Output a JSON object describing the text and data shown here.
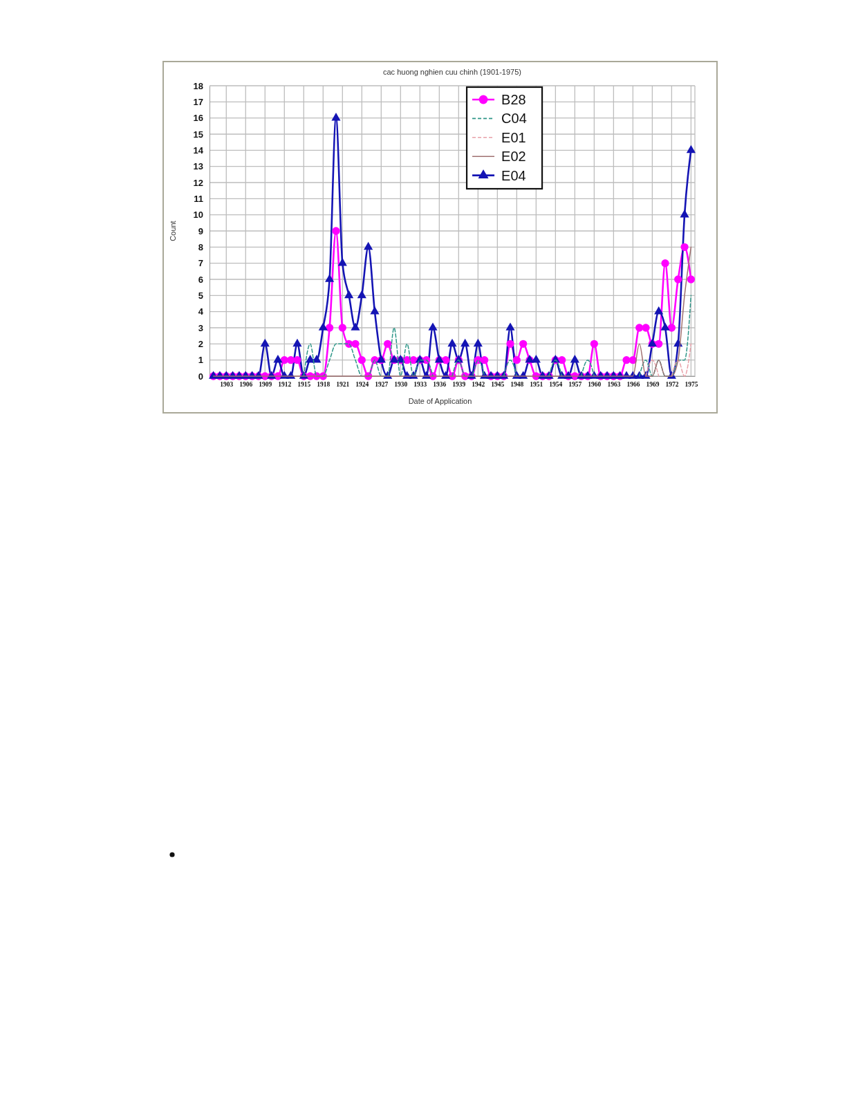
{
  "chart_data": {
    "type": "line",
    "title": "cac huong nghien cuu chinh (1901-1975)",
    "xlabel": "Date of Application",
    "ylabel": "Count",
    "x": [
      1901,
      1902,
      1903,
      1904,
      1905,
      1906,
      1907,
      1908,
      1909,
      1910,
      1911,
      1912,
      1913,
      1914,
      1915,
      1916,
      1917,
      1918,
      1919,
      1920,
      1921,
      1922,
      1923,
      1924,
      1925,
      1926,
      1927,
      1928,
      1929,
      1930,
      1931,
      1932,
      1933,
      1934,
      1935,
      1936,
      1937,
      1938,
      1939,
      1940,
      1941,
      1942,
      1943,
      1944,
      1945,
      1946,
      1947,
      1948,
      1949,
      1950,
      1951,
      1952,
      1953,
      1954,
      1955,
      1956,
      1957,
      1958,
      1959,
      1960,
      1961,
      1962,
      1963,
      1964,
      1965,
      1966,
      1967,
      1968,
      1969,
      1970,
      1971,
      1972,
      1973,
      1974,
      1975
    ],
    "xlim": [
      1900.4,
      1975.6
    ],
    "xticks": [
      1903,
      1906,
      1909,
      1912,
      1915,
      1918,
      1921,
      1924,
      1927,
      1930,
      1933,
      1936,
      1939,
      1942,
      1945,
      1948,
      1951,
      1954,
      1957,
      1960,
      1963,
      1966,
      1969,
      1972,
      1975
    ],
    "ylim": [
      0,
      18
    ],
    "yticks": [
      0,
      1,
      2,
      3,
      4,
      5,
      6,
      7,
      8,
      9,
      10,
      11,
      12,
      13,
      14,
      15,
      16,
      17,
      18
    ],
    "grid": true,
    "legend": "top",
    "series": [
      {
        "name": "B28",
        "color": "#ff00ff",
        "marker": "circle",
        "line_style": "solid",
        "values": [
          0,
          0,
          0,
          0,
          0,
          0,
          0,
          0,
          0,
          0,
          0,
          1,
          1,
          1,
          0,
          0,
          0,
          0,
          3,
          9,
          3,
          2,
          2,
          1,
          0,
          1,
          1,
          2,
          1,
          1,
          1,
          1,
          1,
          1,
          0,
          1,
          1,
          0,
          1,
          0,
          0,
          1,
          1,
          0,
          0,
          0,
          2,
          1,
          2,
          1,
          0,
          0,
          0,
          1,
          1,
          0,
          0,
          0,
          0,
          2,
          0,
          0,
          0,
          0,
          1,
          1,
          3,
          3,
          2,
          2,
          7,
          3,
          6,
          8,
          6
        ]
      },
      {
        "name": "C04",
        "color": "#2e9688",
        "marker": "none",
        "line_style": "dashed",
        "values": [
          null,
          null,
          null,
          null,
          null,
          null,
          null,
          null,
          null,
          null,
          null,
          null,
          null,
          null,
          0,
          2,
          0,
          0,
          1,
          2,
          2,
          2,
          1,
          0,
          0,
          1,
          0,
          0,
          3,
          0,
          2,
          0,
          1,
          1,
          0,
          null,
          null,
          0,
          1,
          0,
          0,
          1,
          0,
          null,
          null,
          0,
          1,
          0,
          null,
          null,
          null,
          null,
          0,
          1,
          0,
          null,
          null,
          0,
          1,
          0,
          null,
          null,
          null,
          null,
          null,
          null,
          0,
          1,
          0,
          1,
          0,
          0,
          1,
          1,
          5
        ]
      },
      {
        "name": "E01",
        "color": "#e8a0a8",
        "marker": "none",
        "line_style": "dashed",
        "values": [
          null,
          null,
          null,
          null,
          null,
          null,
          null,
          null,
          null,
          null,
          null,
          null,
          null,
          null,
          null,
          null,
          null,
          null,
          null,
          null,
          null,
          null,
          null,
          null,
          null,
          null,
          null,
          null,
          null,
          null,
          null,
          null,
          null,
          null,
          null,
          null,
          null,
          null,
          null,
          null,
          null,
          null,
          null,
          null,
          null,
          null,
          null,
          null,
          null,
          null,
          null,
          null,
          null,
          null,
          null,
          null,
          null,
          null,
          null,
          null,
          null,
          null,
          null,
          null,
          null,
          null,
          null,
          0,
          1,
          0,
          null,
          0,
          1,
          0,
          2
        ]
      },
      {
        "name": "E02",
        "color": "#a07070",
        "marker": "none",
        "line_style": "solid",
        "values": [
          0,
          0,
          0,
          0,
          0,
          0,
          0,
          0,
          0,
          0,
          0,
          0,
          0,
          0,
          0,
          0,
          0,
          0,
          0,
          0,
          0,
          0,
          0,
          0,
          0,
          0,
          0,
          0,
          0,
          0,
          0,
          0,
          0,
          0,
          0,
          0,
          0,
          0,
          0,
          0,
          0,
          0,
          0,
          0,
          0,
          0,
          0,
          0,
          0,
          0,
          0,
          0,
          0,
          0,
          0,
          0,
          0,
          0,
          0,
          0,
          0,
          0,
          0,
          0,
          0,
          0,
          2,
          0,
          0,
          1,
          0,
          0,
          1,
          5,
          8
        ]
      },
      {
        "name": "E04",
        "color": "#1414b4",
        "marker": "triangle",
        "line_style": "solid",
        "values": [
          0,
          0,
          0,
          0,
          0,
          0,
          0,
          0,
          2,
          0,
          1,
          0,
          0,
          2,
          0,
          1,
          1,
          3,
          6,
          16,
          7,
          5,
          3,
          5,
          8,
          4,
          1,
          0,
          1,
          1,
          0,
          0,
          1,
          0,
          3,
          1,
          0,
          2,
          1,
          2,
          0,
          2,
          0,
          0,
          0,
          0,
          3,
          0,
          0,
          1,
          1,
          0,
          0,
          1,
          0,
          0,
          1,
          0,
          0,
          0,
          0,
          0,
          0,
          0,
          0,
          0,
          0,
          0,
          2,
          4,
          3,
          0,
          2,
          10,
          14
        ]
      }
    ]
  }
}
